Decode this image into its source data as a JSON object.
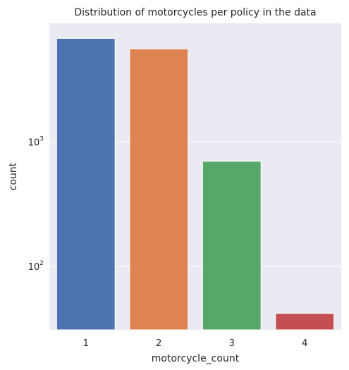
{
  "chart_data": {
    "type": "bar",
    "title": "Distribution of motorcycles per policy in the data",
    "xlabel": "motorcycle_count",
    "ylabel": "count",
    "categories": [
      "1",
      "2",
      "3",
      "4"
    ],
    "values": [
      6800,
      5600,
      700,
      42
    ],
    "colors": [
      "#4c72b0",
      "#dd8452",
      "#55a868",
      "#c44e52"
    ],
    "yscale": "log",
    "ylim": [
      31,
      9000
    ],
    "yticks": [
      {
        "value": 100,
        "base": "10",
        "exp": "2"
      },
      {
        "value": 1000,
        "base": "10",
        "exp": "3"
      }
    ],
    "background": "#eaeaf2",
    "grid": true
  }
}
